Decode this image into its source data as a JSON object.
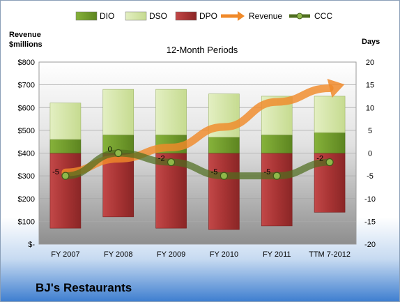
{
  "company_name": "BJ's Restaurants",
  "chart_data": {
    "type": "bar",
    "title": "12-Month Periods",
    "categories": [
      "FY 2007",
      "FY 2008",
      "FY 2009",
      "FY 2010",
      "FY 2011",
      "TTM 7-2012"
    ],
    "left_axis": {
      "label_line1": "Revenue",
      "label_line2": "$millions",
      "range": [
        0,
        800
      ],
      "ticks": [
        "$-",
        "$100",
        "$200",
        "$300",
        "$400",
        "$500",
        "$600",
        "$700",
        "$800"
      ]
    },
    "right_axis": {
      "label": "Days",
      "range": [
        -20,
        20
      ],
      "ticks": [
        "-20",
        "-15",
        "-10",
        "-5",
        "0",
        "5",
        "10",
        "15",
        "20"
      ]
    },
    "legend": [
      "DIO",
      "DSO",
      "DPO",
      "Revenue",
      "CCC"
    ],
    "series": [
      {
        "name": "DPO",
        "axis": "days",
        "color": "#b23a3a",
        "values": [
          -16.5,
          -14.0,
          -16.5,
          -16.8,
          -16.0,
          -13.0
        ]
      },
      {
        "name": "DIO",
        "axis": "days",
        "color": "#6f9a2a",
        "values": [
          3.0,
          4.0,
          4.0,
          3.5,
          4.0,
          4.5
        ]
      },
      {
        "name": "DSO",
        "axis": "days",
        "color": "#d5e6a8",
        "values": [
          8.0,
          10.0,
          10.0,
          9.5,
          8.5,
          8.0
        ]
      },
      {
        "name": "Revenue",
        "axis": "revenue",
        "color": "#f08a2a",
        "values": [
          315,
          375,
          425,
          515,
          625,
          685
        ]
      },
      {
        "name": "CCC",
        "axis": "days",
        "color": "#4f6e1f",
        "values": [
          -5,
          0,
          -2,
          -5,
          -5,
          -2
        ]
      }
    ],
    "ccc_labels": [
      "-5",
      "0",
      "-2",
      "-5",
      "-5",
      "-2"
    ],
    "grid": true,
    "legend_position": "top"
  }
}
